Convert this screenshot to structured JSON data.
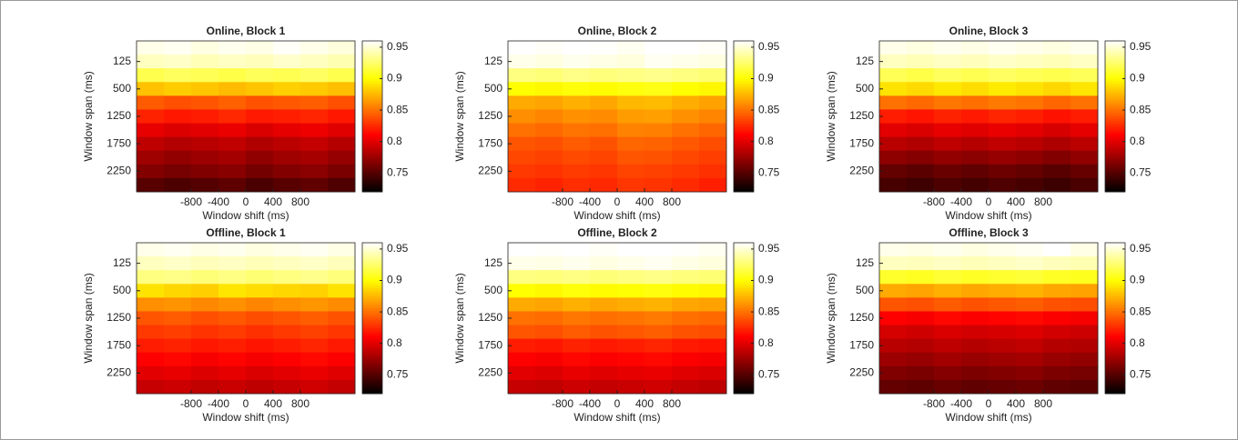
{
  "chart_data": [
    {
      "type": "heatmap",
      "title": "Online, Block 1",
      "xlabel": "Window shift (ms)",
      "ylabel": "Window span (ms)",
      "x": [
        -1400,
        -1000,
        -600,
        -200,
        200,
        600,
        1000,
        1400
      ],
      "xlim": [
        -1600,
        1600
      ],
      "xticks": [
        -800,
        -400,
        0,
        400,
        800
      ],
      "y": [
        null,
        125,
        null,
        500,
        null,
        1250,
        null,
        1750,
        null,
        2250,
        null
      ],
      "clim": [
        0.72,
        0.96
      ],
      "cticks": [
        0.75,
        0.8,
        0.85,
        0.9,
        0.95
      ],
      "colormap": "hot",
      "z": [
        [
          0.955,
          0.957,
          0.953,
          0.956,
          0.954,
          0.958,
          0.955,
          0.952
        ],
        [
          0.945,
          0.947,
          0.943,
          0.946,
          0.944,
          0.948,
          0.945,
          0.942
        ],
        [
          0.918,
          0.922,
          0.92,
          0.917,
          0.921,
          0.919,
          0.923,
          0.918
        ],
        [
          0.878,
          0.882,
          0.88,
          0.876,
          0.879,
          0.883,
          0.881,
          0.877
        ],
        [
          0.842,
          0.838,
          0.84,
          0.844,
          0.839,
          0.841,
          0.843,
          0.838
        ],
        [
          0.822,
          0.818,
          0.82,
          0.824,
          0.819,
          0.821,
          0.823,
          0.818
        ],
        [
          0.802,
          0.798,
          0.8,
          0.803,
          0.797,
          0.801,
          0.804,
          0.799
        ],
        [
          0.787,
          0.783,
          0.785,
          0.788,
          0.782,
          0.786,
          0.789,
          0.784
        ],
        [
          0.776,
          0.772,
          0.775,
          0.778,
          0.771,
          0.776,
          0.779,
          0.773
        ],
        [
          0.766,
          0.762,
          0.765,
          0.768,
          0.761,
          0.766,
          0.769,
          0.763
        ],
        [
          0.751,
          0.747,
          0.75,
          0.753,
          0.746,
          0.751,
          0.754,
          0.748
        ]
      ]
    },
    {
      "type": "heatmap",
      "title": "Online, Block 2",
      "xlabel": "Window shift (ms)",
      "ylabel": "Window span (ms)",
      "x": [
        -1400,
        -1000,
        -600,
        -200,
        200,
        600,
        1000,
        1400
      ],
      "xlim": [
        -1600,
        1600
      ],
      "xticks": [
        -800,
        -400,
        0,
        400,
        800
      ],
      "y": [
        null,
        125,
        null,
        500,
        null,
        1250,
        null,
        1750,
        null,
        2250,
        null
      ],
      "clim": [
        0.72,
        0.96
      ],
      "cticks": [
        0.75,
        0.8,
        0.85,
        0.9,
        0.95
      ],
      "colormap": "hot",
      "z": [
        [
          0.96,
          0.958,
          0.961,
          0.959,
          0.957,
          0.962,
          0.96,
          0.958
        ],
        [
          0.955,
          0.953,
          0.956,
          0.954,
          0.952,
          0.957,
          0.955,
          0.953
        ],
        [
          0.93,
          0.928,
          0.932,
          0.929,
          0.931,
          0.933,
          0.93,
          0.927
        ],
        [
          0.9,
          0.898,
          0.902,
          0.899,
          0.903,
          0.905,
          0.9,
          0.897
        ],
        [
          0.87,
          0.868,
          0.872,
          0.869,
          0.875,
          0.876,
          0.871,
          0.867
        ],
        [
          0.86,
          0.857,
          0.861,
          0.859,
          0.865,
          0.866,
          0.861,
          0.857
        ],
        [
          0.85,
          0.847,
          0.851,
          0.849,
          0.856,
          0.855,
          0.85,
          0.846
        ],
        [
          0.84,
          0.838,
          0.842,
          0.839,
          0.846,
          0.845,
          0.841,
          0.837
        ],
        [
          0.835,
          0.833,
          0.836,
          0.834,
          0.84,
          0.839,
          0.835,
          0.832
        ],
        [
          0.83,
          0.828,
          0.831,
          0.829,
          0.834,
          0.833,
          0.83,
          0.827
        ],
        [
          0.825,
          0.822,
          0.826,
          0.824,
          0.829,
          0.828,
          0.825,
          0.821
        ]
      ]
    },
    {
      "type": "heatmap",
      "title": "Online, Block 3",
      "xlabel": "Window shift (ms)",
      "ylabel": "Window span (ms)",
      "x": [
        -1400,
        -1000,
        -600,
        -200,
        200,
        600,
        1000,
        1400
      ],
      "xlim": [
        -1600,
        1600
      ],
      "xticks": [
        -800,
        -400,
        0,
        400,
        800
      ],
      "y": [
        null,
        125,
        null,
        500,
        null,
        1250,
        null,
        1750,
        null,
        2250,
        null
      ],
      "clim": [
        0.72,
        0.96
      ],
      "cticks": [
        0.75,
        0.8,
        0.85,
        0.9,
        0.95
      ],
      "colormap": "hot",
      "z": [
        [
          0.955,
          0.953,
          0.956,
          0.954,
          0.957,
          0.955,
          0.953,
          0.956
        ],
        [
          0.945,
          0.943,
          0.946,
          0.944,
          0.947,
          0.945,
          0.943,
          0.946
        ],
        [
          0.92,
          0.917,
          0.922,
          0.919,
          0.923,
          0.92,
          0.918,
          0.921
        ],
        [
          0.89,
          0.887,
          0.892,
          0.888,
          0.893,
          0.89,
          0.886,
          0.891
        ],
        [
          0.85,
          0.847,
          0.852,
          0.849,
          0.853,
          0.851,
          0.846,
          0.85
        ],
        [
          0.82,
          0.817,
          0.822,
          0.819,
          0.823,
          0.821,
          0.816,
          0.82
        ],
        [
          0.8,
          0.797,
          0.802,
          0.799,
          0.803,
          0.8,
          0.796,
          0.801
        ],
        [
          0.785,
          0.782,
          0.787,
          0.784,
          0.788,
          0.785,
          0.781,
          0.786
        ],
        [
          0.77,
          0.767,
          0.772,
          0.769,
          0.773,
          0.77,
          0.766,
          0.771
        ],
        [
          0.755,
          0.752,
          0.757,
          0.754,
          0.758,
          0.755,
          0.751,
          0.756
        ],
        [
          0.745,
          0.742,
          0.747,
          0.744,
          0.748,
          0.745,
          0.741,
          0.746
        ]
      ]
    },
    {
      "type": "heatmap",
      "title": "Offline, Block 1",
      "xlabel": "Window shift (ms)",
      "ylabel": "Window span (ms)",
      "x": [
        -1400,
        -1000,
        -600,
        -200,
        200,
        600,
        1000,
        1400
      ],
      "xlim": [
        -1600,
        1600
      ],
      "xticks": [
        -800,
        -400,
        0,
        400,
        800
      ],
      "y": [
        null,
        125,
        null,
        500,
        null,
        1250,
        null,
        1750,
        null,
        2250,
        null
      ],
      "clim": [
        0.72,
        0.96
      ],
      "cticks": [
        0.75,
        0.8,
        0.85,
        0.9,
        0.95
      ],
      "colormap": "hot",
      "z": [
        [
          0.955,
          0.957,
          0.954,
          0.956,
          0.953,
          0.955,
          0.957,
          0.954
        ],
        [
          0.945,
          0.947,
          0.944,
          0.946,
          0.943,
          0.945,
          0.947,
          0.944
        ],
        [
          0.93,
          0.932,
          0.928,
          0.931,
          0.927,
          0.93,
          0.933,
          0.929
        ],
        [
          0.89,
          0.886,
          0.883,
          0.891,
          0.888,
          0.886,
          0.884,
          0.89
        ],
        [
          0.86,
          0.862,
          0.858,
          0.861,
          0.857,
          0.86,
          0.863,
          0.859
        ],
        [
          0.84,
          0.842,
          0.838,
          0.841,
          0.837,
          0.84,
          0.843,
          0.839
        ],
        [
          0.83,
          0.832,
          0.828,
          0.831,
          0.827,
          0.83,
          0.833,
          0.829
        ],
        [
          0.82,
          0.822,
          0.818,
          0.821,
          0.817,
          0.82,
          0.823,
          0.819
        ],
        [
          0.81,
          0.812,
          0.808,
          0.811,
          0.807,
          0.81,
          0.813,
          0.809
        ],
        [
          0.8,
          0.802,
          0.798,
          0.801,
          0.797,
          0.8,
          0.803,
          0.799
        ],
        [
          0.79,
          0.792,
          0.788,
          0.791,
          0.787,
          0.79,
          0.793,
          0.789
        ]
      ]
    },
    {
      "type": "heatmap",
      "title": "Offline, Block 2",
      "xlabel": "Window shift (ms)",
      "ylabel": "Window span (ms)",
      "x": [
        -1400,
        -1000,
        -600,
        -200,
        200,
        600,
        1000,
        1400
      ],
      "xlim": [
        -1600,
        1600
      ],
      "xticks": [
        -800,
        -400,
        0,
        400,
        800
      ],
      "y": [
        null,
        125,
        null,
        500,
        null,
        1250,
        null,
        1750,
        null,
        2250,
        null
      ],
      "clim": [
        0.72,
        0.96
      ],
      "cticks": [
        0.75,
        0.8,
        0.85,
        0.9,
        0.95
      ],
      "colormap": "hot",
      "z": [
        [
          0.96,
          0.959,
          0.961,
          0.958,
          0.96,
          0.962,
          0.959,
          0.957
        ],
        [
          0.955,
          0.954,
          0.956,
          0.953,
          0.955,
          0.957,
          0.954,
          0.952
        ],
        [
          0.93,
          0.929,
          0.931,
          0.928,
          0.93,
          0.932,
          0.929,
          0.927
        ],
        [
          0.9,
          0.898,
          0.902,
          0.899,
          0.901,
          0.903,
          0.899,
          0.897
        ],
        [
          0.87,
          0.868,
          0.872,
          0.869,
          0.871,
          0.873,
          0.869,
          0.867
        ],
        [
          0.85,
          0.848,
          0.852,
          0.849,
          0.851,
          0.853,
          0.849,
          0.847
        ],
        [
          0.84,
          0.838,
          0.842,
          0.839,
          0.841,
          0.843,
          0.839,
          0.837
        ],
        [
          0.82,
          0.818,
          0.822,
          0.819,
          0.821,
          0.823,
          0.819,
          0.817
        ],
        [
          0.81,
          0.808,
          0.812,
          0.809,
          0.811,
          0.813,
          0.809,
          0.807
        ],
        [
          0.8,
          0.798,
          0.802,
          0.799,
          0.801,
          0.803,
          0.799,
          0.797
        ],
        [
          0.79,
          0.788,
          0.792,
          0.789,
          0.791,
          0.793,
          0.789,
          0.787
        ]
      ]
    },
    {
      "type": "heatmap",
      "title": "Offline, Block 3",
      "xlabel": "Window shift (ms)",
      "ylabel": "Window span (ms)",
      "x": [
        -1400,
        -1000,
        -600,
        -200,
        200,
        600,
        1000,
        1400
      ],
      "xlim": [
        -1600,
        1600
      ],
      "xticks": [
        -800,
        -400,
        0,
        400,
        800
      ],
      "y": [
        null,
        125,
        null,
        500,
        null,
        1250,
        null,
        1750,
        null,
        2250,
        null
      ],
      "clim": [
        0.72,
        0.96
      ],
      "cticks": [
        0.75,
        0.8,
        0.85,
        0.9,
        0.95
      ],
      "colormap": "hot",
      "z": [
        [
          0.955,
          0.954,
          0.956,
          0.953,
          0.955,
          0.957,
          0.96,
          0.954
        ],
        [
          0.945,
          0.944,
          0.946,
          0.943,
          0.945,
          0.947,
          0.944,
          0.942
        ],
        [
          0.91,
          0.908,
          0.912,
          0.909,
          0.911,
          0.913,
          0.909,
          0.907
        ],
        [
          0.87,
          0.868,
          0.872,
          0.869,
          0.871,
          0.873,
          0.869,
          0.867
        ],
        [
          0.84,
          0.838,
          0.842,
          0.839,
          0.841,
          0.843,
          0.839,
          0.837
        ],
        [
          0.81,
          0.808,
          0.812,
          0.809,
          0.811,
          0.813,
          0.809,
          0.807
        ],
        [
          0.795,
          0.793,
          0.797,
          0.794,
          0.796,
          0.798,
          0.794,
          0.792
        ],
        [
          0.785,
          0.783,
          0.787,
          0.784,
          0.786,
          0.788,
          0.784,
          0.782
        ],
        [
          0.775,
          0.773,
          0.777,
          0.774,
          0.776,
          0.778,
          0.774,
          0.772
        ],
        [
          0.765,
          0.763,
          0.767,
          0.764,
          0.766,
          0.768,
          0.764,
          0.762
        ],
        [
          0.755,
          0.753,
          0.757,
          0.754,
          0.756,
          0.758,
          0.754,
          0.752
        ]
      ]
    }
  ]
}
